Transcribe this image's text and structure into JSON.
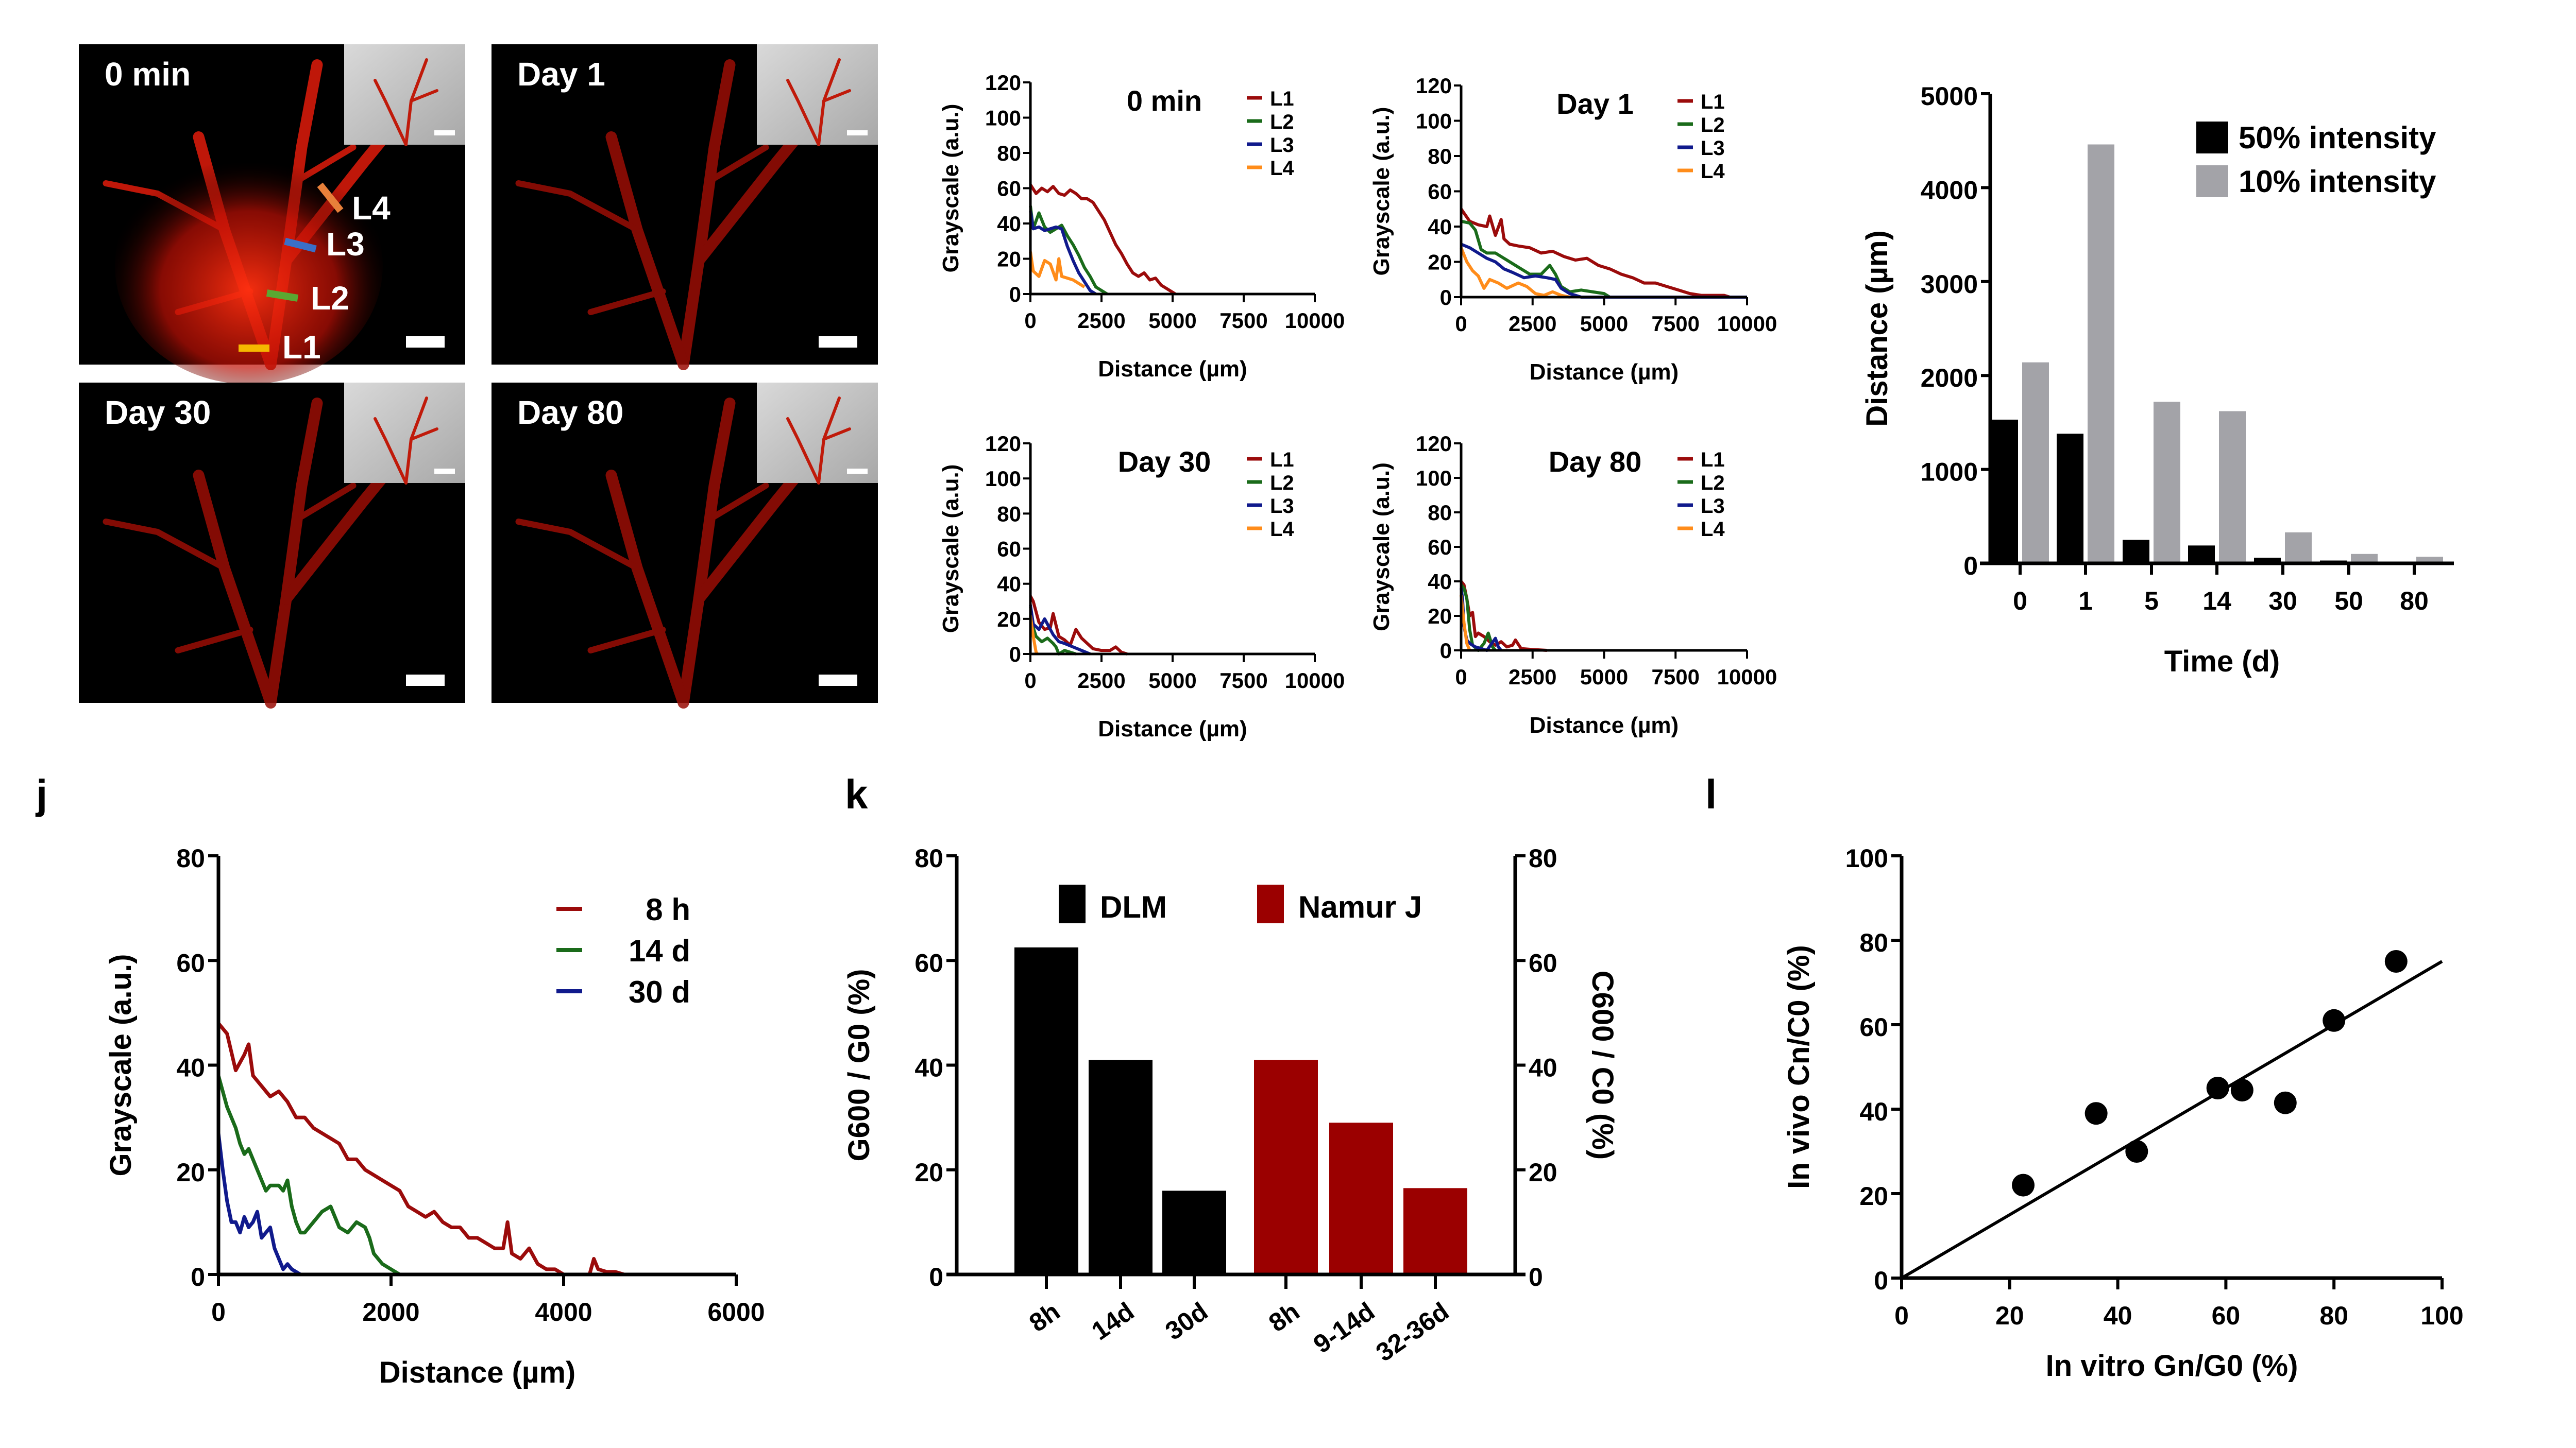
{
  "figure": {
    "panel_letters": [
      "j",
      "k",
      "l"
    ]
  },
  "photos": [
    {
      "label": "0 min",
      "markers": [
        {
          "name": "L1",
          "color": "#f5b800"
        },
        {
          "name": "L2",
          "color": "#5aa832"
        },
        {
          "name": "L3",
          "color": "#3a6fc8"
        },
        {
          "name": "L4",
          "color": "#e8803a"
        }
      ]
    },
    {
      "label": "Day 1",
      "markers": []
    },
    {
      "label": "Day 30",
      "markers": []
    },
    {
      "label": "Day 80",
      "markers": []
    }
  ],
  "colors": {
    "L1": "#9b0b0b",
    "L2": "#1a6b1a",
    "L3": "#101a8c",
    "L4": "#ff8c1a",
    "black": "#000000",
    "gray": "#a3a3a8",
    "namur": "#9b0000"
  },
  "chart_data": [
    {
      "id": "profile-0min",
      "type": "line",
      "title": "0 min",
      "xlabel": "Distance (µm)",
      "ylabel": "Grayscale (a.u.)",
      "xlim": [
        0,
        10000
      ],
      "ylim": [
        0,
        120
      ],
      "xticks": [
        0,
        2500,
        5000,
        7500,
        10000
      ],
      "yticks": [
        0,
        20,
        40,
        60,
        80,
        100,
        120
      ],
      "legend": "top-right",
      "series": [
        {
          "name": "L1",
          "x": [
            0,
            200,
            400,
            600,
            800,
            1000,
            1200,
            1400,
            1600,
            1800,
            2000,
            2200,
            2400,
            2600,
            2800,
            3000,
            3200,
            3400,
            3600,
            3800,
            4000,
            4200,
            4400,
            4600,
            4800,
            5000,
            5100
          ],
          "y": [
            62,
            57,
            60,
            58,
            61,
            57,
            56,
            59,
            57,
            54,
            54,
            52,
            47,
            42,
            35,
            28,
            23,
            17,
            12,
            10,
            12,
            8,
            9,
            5,
            3,
            1,
            0
          ]
        },
        {
          "name": "L2",
          "x": [
            0,
            100,
            300,
            500,
            700,
            900,
            1100,
            1300,
            1500,
            1700,
            1900,
            2100,
            2300,
            2500,
            2700
          ],
          "y": [
            50,
            37,
            46,
            38,
            35,
            37,
            39,
            33,
            28,
            22,
            15,
            10,
            4,
            2,
            0
          ]
        },
        {
          "name": "L3",
          "x": [
            0,
            100,
            300,
            500,
            700,
            900,
            1100,
            1300,
            1500,
            1700,
            1900,
            2100,
            2300
          ],
          "y": [
            47,
            37,
            38,
            36,
            37,
            38,
            37,
            27,
            19,
            12,
            7,
            2,
            0
          ]
        },
        {
          "name": "L4",
          "x": [
            0,
            100,
            300,
            500,
            700,
            900,
            1000,
            1100,
            1300,
            1500,
            1700,
            1900
          ],
          "y": [
            24,
            13,
            10,
            19,
            17,
            8,
            20,
            10,
            9,
            8,
            6,
            4
          ]
        }
      ]
    },
    {
      "id": "profile-day1",
      "type": "line",
      "title": "Day 1",
      "xlabel": "Distance (µm)",
      "ylabel": "Grayscale (a.u.)",
      "xlim": [
        0,
        10000
      ],
      "ylim": [
        0,
        120
      ],
      "xticks": [
        0,
        2500,
        5000,
        7500,
        10000
      ],
      "yticks": [
        0,
        20,
        40,
        60,
        80,
        100,
        120
      ],
      "legend": "top-right",
      "series": [
        {
          "name": "L1",
          "x": [
            0,
            300,
            600,
            900,
            1000,
            1200,
            1400,
            1500,
            1700,
            2000,
            2400,
            2800,
            3200,
            3600,
            4000,
            4400,
            4800,
            5200,
            5600,
            6000,
            6400,
            6800,
            7200,
            7600,
            8000,
            8400,
            8800,
            9200,
            9400
          ],
          "y": [
            50,
            43,
            41,
            40,
            46,
            35,
            44,
            33,
            30,
            29,
            28,
            25,
            26,
            23,
            21,
            22,
            18,
            16,
            13,
            11,
            8,
            8,
            6,
            4,
            2,
            1,
            1,
            1,
            0
          ]
        },
        {
          "name": "L2",
          "x": [
            0,
            300,
            500,
            700,
            900,
            1200,
            1600,
            2000,
            2400,
            2800,
            3100,
            3300,
            3500,
            3800,
            4200,
            4600,
            5000,
            5200
          ],
          "y": [
            43,
            42,
            38,
            27,
            25,
            25,
            21,
            17,
            13,
            13,
            18,
            13,
            6,
            3,
            4,
            3,
            2,
            0
          ]
        },
        {
          "name": "L3",
          "x": [
            0,
            300,
            600,
            900,
            1200,
            1500,
            1800,
            2200,
            2600,
            3000,
            3300,
            3500,
            3800,
            4200,
            10000
          ],
          "y": [
            30,
            28,
            25,
            22,
            20,
            16,
            14,
            11,
            12,
            11,
            10,
            5,
            2,
            0,
            0
          ]
        },
        {
          "name": "L4",
          "x": [
            0,
            200,
            400,
            600,
            800,
            1000,
            1300,
            1600,
            2000,
            2300,
            2600,
            2900,
            3200,
            3500,
            3800
          ],
          "y": [
            28,
            20,
            15,
            12,
            5,
            10,
            8,
            5,
            8,
            6,
            2,
            1,
            3,
            1,
            0
          ]
        }
      ]
    },
    {
      "id": "profile-day30",
      "type": "line",
      "title": "Day 30",
      "xlabel": "Distance (µm)",
      "ylabel": "Grayscale (a.u.)",
      "xlim": [
        0,
        10000
      ],
      "ylim": [
        0,
        120
      ],
      "xticks": [
        0,
        2500,
        5000,
        7500,
        10000
      ],
      "yticks": [
        0,
        20,
        40,
        60,
        80,
        100,
        120
      ],
      "legend": "top-right",
      "series": [
        {
          "name": "L1",
          "x": [
            0,
            100,
            300,
            500,
            700,
            800,
            1000,
            1200,
            1400,
            1600,
            1800,
            2000,
            2200,
            2500,
            2800,
            3000,
            3200,
            3400
          ],
          "y": [
            33,
            30,
            18,
            14,
            15,
            23,
            10,
            8,
            5,
            14,
            9,
            6,
            3,
            2,
            2,
            4,
            1,
            0
          ]
        },
        {
          "name": "L2",
          "x": [
            0,
            100,
            200,
            400,
            600,
            800,
            900,
            1000,
            1200,
            1400,
            1600
          ],
          "y": [
            27,
            15,
            10,
            7,
            9,
            6,
            4,
            0,
            2,
            1,
            0
          ]
        },
        {
          "name": "L3",
          "x": [
            0,
            100,
            300,
            500,
            600,
            800,
            1000,
            1200,
            1500,
            1800,
            2100
          ],
          "y": [
            28,
            17,
            14,
            20,
            17,
            11,
            7,
            6,
            4,
            2,
            0
          ]
        },
        {
          "name": "L4",
          "x": [
            0,
            100,
            200,
            250
          ],
          "y": [
            22,
            10,
            1,
            0
          ]
        }
      ]
    },
    {
      "id": "profile-day80",
      "type": "line",
      "title": "Day 80",
      "xlabel": "Distance (µm)",
      "ylabel": "Grayscale (a.u.)",
      "xlim": [
        0,
        10000
      ],
      "ylim": [
        0,
        120
      ],
      "xticks": [
        0,
        2500,
        5000,
        7500,
        10000
      ],
      "yticks": [
        0,
        20,
        40,
        60,
        80,
        100,
        120
      ],
      "legend": "top-right",
      "series": [
        {
          "name": "L1",
          "x": [
            0,
            100,
            200,
            300,
            400,
            500,
            600,
            800,
            1000,
            1200,
            1400,
            1600,
            1800,
            1900,
            2100,
            2500,
            3000
          ],
          "y": [
            40,
            38,
            30,
            20,
            22,
            8,
            10,
            8,
            5,
            3,
            5,
            2,
            3,
            6,
            1,
            0.5,
            0
          ]
        },
        {
          "name": "L2",
          "x": [
            0,
            100,
            200,
            300,
            400,
            600,
            800,
            950,
            1100,
            1200
          ],
          "y": [
            38,
            36,
            30,
            12,
            3,
            0,
            4,
            10,
            2,
            0
          ]
        },
        {
          "name": "L3",
          "x": [
            0,
            50,
            100,
            200,
            300,
            500,
            700,
            900,
            1200,
            1300,
            1400
          ],
          "y": [
            36,
            30,
            14,
            6,
            4,
            2,
            1,
            0,
            7,
            2,
            0
          ]
        },
        {
          "name": "L4",
          "x": [
            0,
            100,
            200,
            300
          ],
          "y": [
            32,
            16,
            4,
            0
          ]
        }
      ]
    },
    {
      "id": "distance-bar",
      "type": "bar",
      "title": "",
      "xlabel": "Time (d)",
      "ylabel": "Distance (µm)",
      "categories": [
        "0",
        "1",
        "5",
        "14",
        "30",
        "50",
        "80"
      ],
      "ylim": [
        0,
        5000
      ],
      "yticks": [
        0,
        1000,
        2000,
        3000,
        4000,
        5000
      ],
      "legend": "top-right",
      "series": [
        {
          "name": "50% intensity",
          "color": "#000000",
          "values": [
            1530,
            1380,
            250,
            190,
            60,
            30,
            0
          ]
        },
        {
          "name": "10% intensity",
          "color": "#a3a3a8",
          "values": [
            2140,
            4460,
            1720,
            1620,
            330,
            100,
            70
          ]
        }
      ]
    },
    {
      "id": "panel-j",
      "type": "line",
      "panel": "j",
      "title": "",
      "xlabel": "Distance (µm)",
      "ylabel": "Grayscale (a.u.)",
      "xlim": [
        0,
        6000
      ],
      "ylim": [
        0,
        80
      ],
      "xticks": [
        0,
        2000,
        4000,
        6000
      ],
      "yticks": [
        0,
        20,
        40,
        60,
        80
      ],
      "legend": "top-right",
      "series": [
        {
          "name": "8 h",
          "x": [
            0,
            100,
            200,
            300,
            350,
            400,
            500,
            600,
            700,
            800,
            900,
            1000,
            1100,
            1200,
            1300,
            1400,
            1500,
            1600,
            1700,
            1800,
            1900,
            2000,
            2100,
            2200,
            2300,
            2400,
            2500,
            2600,
            2700,
            2800,
            2900,
            3000,
            3100,
            3200,
            3300,
            3350,
            3400,
            3500,
            3600,
            3700,
            3800,
            3900,
            4000,
            4200,
            4300,
            4350,
            4400,
            4500,
            4600,
            4700
          ],
          "y": [
            48,
            46,
            39,
            42,
            44,
            38,
            36,
            34,
            35,
            33,
            30,
            30,
            28,
            27,
            26,
            25,
            22,
            22,
            20,
            19,
            18,
            17,
            16,
            13,
            12,
            11,
            12,
            10,
            9,
            9,
            7,
            7,
            6,
            5,
            5,
            10,
            4,
            3,
            5,
            2,
            1,
            1,
            0,
            0,
            0,
            3,
            1,
            0.5,
            0.5,
            0
          ]
        },
        {
          "name": "14 d",
          "x": [
            0,
            100,
            200,
            250,
            300,
            350,
            400,
            450,
            500,
            550,
            600,
            700,
            750,
            800,
            850,
            900,
            950,
            1000,
            1100,
            1200,
            1300,
            1350,
            1400,
            1500,
            1600,
            1700,
            1750,
            1800,
            1900,
            2000,
            2100
          ],
          "y": [
            38,
            32,
            28,
            25,
            23,
            24,
            22,
            20,
            18,
            16,
            17,
            17,
            16,
            18,
            13,
            10,
            8,
            8,
            10,
            12,
            13,
            11,
            9,
            8,
            10,
            9,
            7,
            4,
            2,
            1,
            0
          ]
        },
        {
          "name": "30 d",
          "x": [
            0,
            50,
            100,
            150,
            200,
            250,
            300,
            350,
            400,
            450,
            500,
            550,
            600,
            650,
            700,
            750,
            800,
            850,
            900,
            950
          ],
          "y": [
            27,
            20,
            14,
            10,
            10,
            8,
            11,
            9,
            10,
            12,
            7,
            8,
            9,
            5,
            3,
            1,
            2,
            1,
            0.5,
            0
          ]
        }
      ]
    },
    {
      "id": "panel-k",
      "type": "bar",
      "panel": "k",
      "title": "",
      "ylabel": "G600 / G0 (%)",
      "ylabel_right": "C600 / C0 (%)",
      "categories": [
        "8h",
        "14d",
        "30d",
        "8h",
        "9-14d",
        "32-36d"
      ],
      "ylim": [
        0,
        80
      ],
      "yticks": [
        0,
        20,
        40,
        60,
        80
      ],
      "legend": "top",
      "series": [
        {
          "name": "DLM",
          "color": "#000000",
          "values": [
            62.5,
            41,
            16,
            null,
            null,
            null
          ]
        },
        {
          "name": "Namur J",
          "color": "#9b0000",
          "values": [
            null,
            null,
            null,
            41,
            29,
            16.5
          ]
        }
      ]
    },
    {
      "id": "panel-l",
      "type": "scatter",
      "panel": "l",
      "title": "",
      "xlabel": "In vitro Gn/G0 (%)",
      "ylabel": "In vivo Cn/C0 (%)",
      "xlim": [
        0,
        100
      ],
      "ylim": [
        0,
        100
      ],
      "xticks": [
        0,
        20,
        40,
        60,
        80,
        100
      ],
      "yticks": [
        0,
        20,
        40,
        60,
        80,
        100
      ],
      "points": [
        {
          "x": 22.5,
          "y": 22
        },
        {
          "x": 36,
          "y": 39
        },
        {
          "x": 43.5,
          "y": 30
        },
        {
          "x": 58.5,
          "y": 45
        },
        {
          "x": 63,
          "y": 44.5
        },
        {
          "x": 71,
          "y": 41.5
        },
        {
          "x": 80,
          "y": 61
        },
        {
          "x": 91.5,
          "y": 75
        }
      ],
      "fit_line": {
        "x": [
          0,
          100
        ],
        "y": [
          0,
          75
        ]
      }
    }
  ]
}
